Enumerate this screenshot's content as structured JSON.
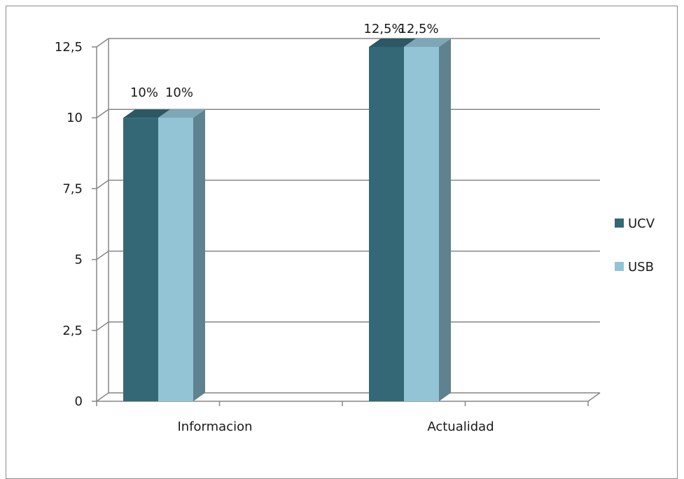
{
  "chart_data": {
    "type": "bar",
    "categories": [
      "Informacion",
      "Actualidad"
    ],
    "series": [
      {
        "name": "UCV",
        "values": [
          10,
          12.5
        ],
        "labels": [
          "10%",
          "12,5%"
        ],
        "color": "#346876"
      },
      {
        "name": "USB",
        "values": [
          10,
          12.5
        ],
        "labels": [
          "10%",
          "12,5%"
        ],
        "color": "#93c4d6"
      }
    ],
    "ylim": [
      0,
      12.5
    ],
    "yticks": [
      0,
      2.5,
      5,
      7.5,
      10,
      12.5
    ],
    "ytick_labels": [
      "0",
      "2,5",
      "5",
      "7,5",
      "10",
      "12,5"
    ],
    "grid": true,
    "legend_position": "right",
    "title": "",
    "xlabel": "",
    "ylabel": ""
  }
}
